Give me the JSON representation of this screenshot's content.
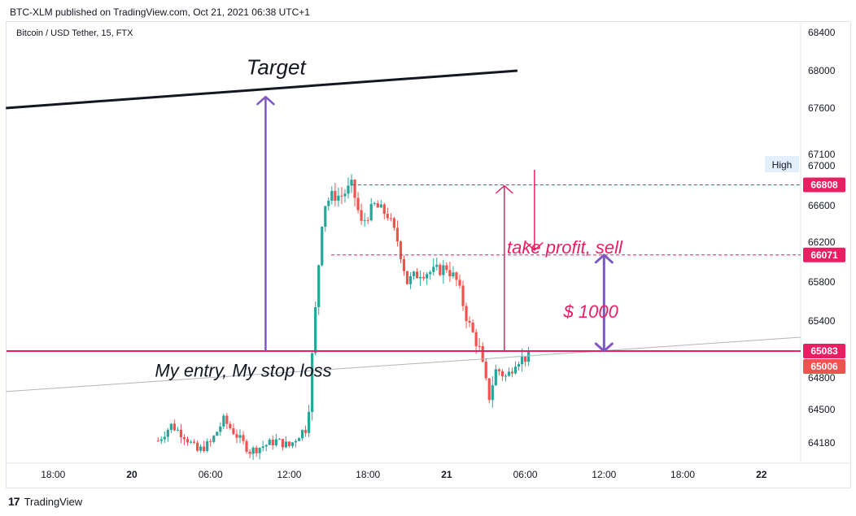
{
  "header": {
    "published": "BTC-XLM published on TradingView.com, Oct 21, 2021 06:38 UTC+1"
  },
  "symbol": "Bitcoin / USD Tether, 15, FTX",
  "footer": {
    "brand": "TradingView",
    "logo": "tv-logo-icon"
  },
  "colors": {
    "up": "#26a69a",
    "down": "#ef5350",
    "accent": "#e91e63",
    "arrow": "#7e57c2",
    "trend": "#131722",
    "support": "#b2b5be"
  },
  "chart_data": {
    "type": "candlestick",
    "x_axis": {
      "ticks": [
        {
          "label": "18:00",
          "h": -6
        },
        {
          "label": "20",
          "h": 0,
          "bold": true
        },
        {
          "label": "06:00",
          "h": 6
        },
        {
          "label": "12:00",
          "h": 12
        },
        {
          "label": "18:00",
          "h": 18
        },
        {
          "label": "21",
          "h": 24,
          "bold": true
        },
        {
          "label": "06:00",
          "h": 30
        },
        {
          "label": "12:00",
          "h": 36
        },
        {
          "label": "18:00",
          "h": 42
        },
        {
          "label": "22",
          "h": 48,
          "bold": true
        }
      ]
    },
    "y_axis": {
      "ticks": [
        68400,
        68000,
        67600,
        67100,
        67000,
        66600,
        66200,
        65800,
        65400,
        64800,
        64500,
        64180
      ]
    },
    "price_labels": [
      {
        "value": 66808,
        "text": "66808"
      },
      {
        "value": 66071,
        "text": "66071"
      },
      {
        "value": 65083,
        "text": "65083"
      },
      {
        "value": 65006,
        "text": "65006"
      }
    ],
    "high_label": "High",
    "lines": {
      "target": {
        "h1": -9.6,
        "p1": 67600,
        "h2": 29.4,
        "p2": 68000
      },
      "support": {
        "h1": -9.6,
        "p1": 64670,
        "h2": 30,
        "p2": 65030
      },
      "entry": {
        "price": 65083
      },
      "high_dash": {
        "price": 66808,
        "h_start": 16.8
      },
      "tp_dash": {
        "price": 66071,
        "h_start": 15.2
      }
    },
    "annotations": [
      {
        "text": "Target",
        "h": 11,
        "price": 68030
      },
      {
        "text": "My entry, My stop loss",
        "h": 8.5,
        "price": 64880
      },
      {
        "text": "take profit, sell",
        "h": 33,
        "price": 66150
      },
      {
        "text": "$ 1000",
        "h": 35,
        "price": 65500
      }
    ],
    "arrows": [
      {
        "h": 10.2,
        "from": 65083,
        "to": 67720
      },
      {
        "h": 28.4,
        "from": 65083,
        "to": 66800
      },
      {
        "h": 30.7,
        "from": 66960,
        "to": 66120
      },
      {
        "h": 36,
        "from": 65083,
        "to": 66071,
        "double": true
      }
    ]
  }
}
